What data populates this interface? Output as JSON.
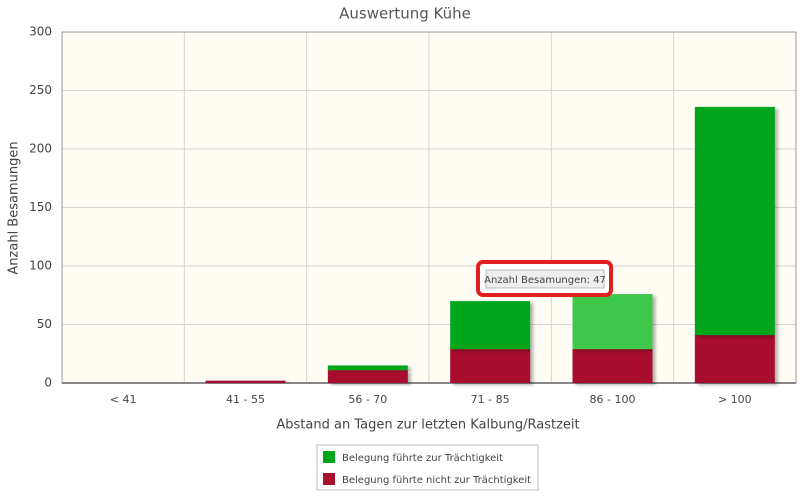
{
  "chart_data": {
    "type": "stacked_bar",
    "title": "Auswertung Kühe",
    "x_label": "Abstand an Tagen zur letzten Kalbung/Rastzeit",
    "y_label": "Anzahl Besamungen",
    "categories": [
      "< 41",
      "41 - 55",
      "56 - 70",
      "71 - 85",
      "86 - 100",
      "> 100"
    ],
    "series": [
      {
        "name": "Belegung führte nicht zur Trächtigkeit",
        "color": "#a8102f",
        "values": [
          0,
          2,
          11,
          29,
          29,
          41
        ]
      },
      {
        "name": "Belegung führte zur Trächtigkeit",
        "color": "#00a51a",
        "values": [
          0,
          0,
          4,
          41,
          47,
          195
        ]
      }
    ],
    "ylim": [
      0,
      300
    ],
    "yticks": [
      0,
      50,
      100,
      150,
      200,
      250,
      300
    ],
    "grid": true,
    "annotation": "Anzahl Besamungen: 47"
  }
}
